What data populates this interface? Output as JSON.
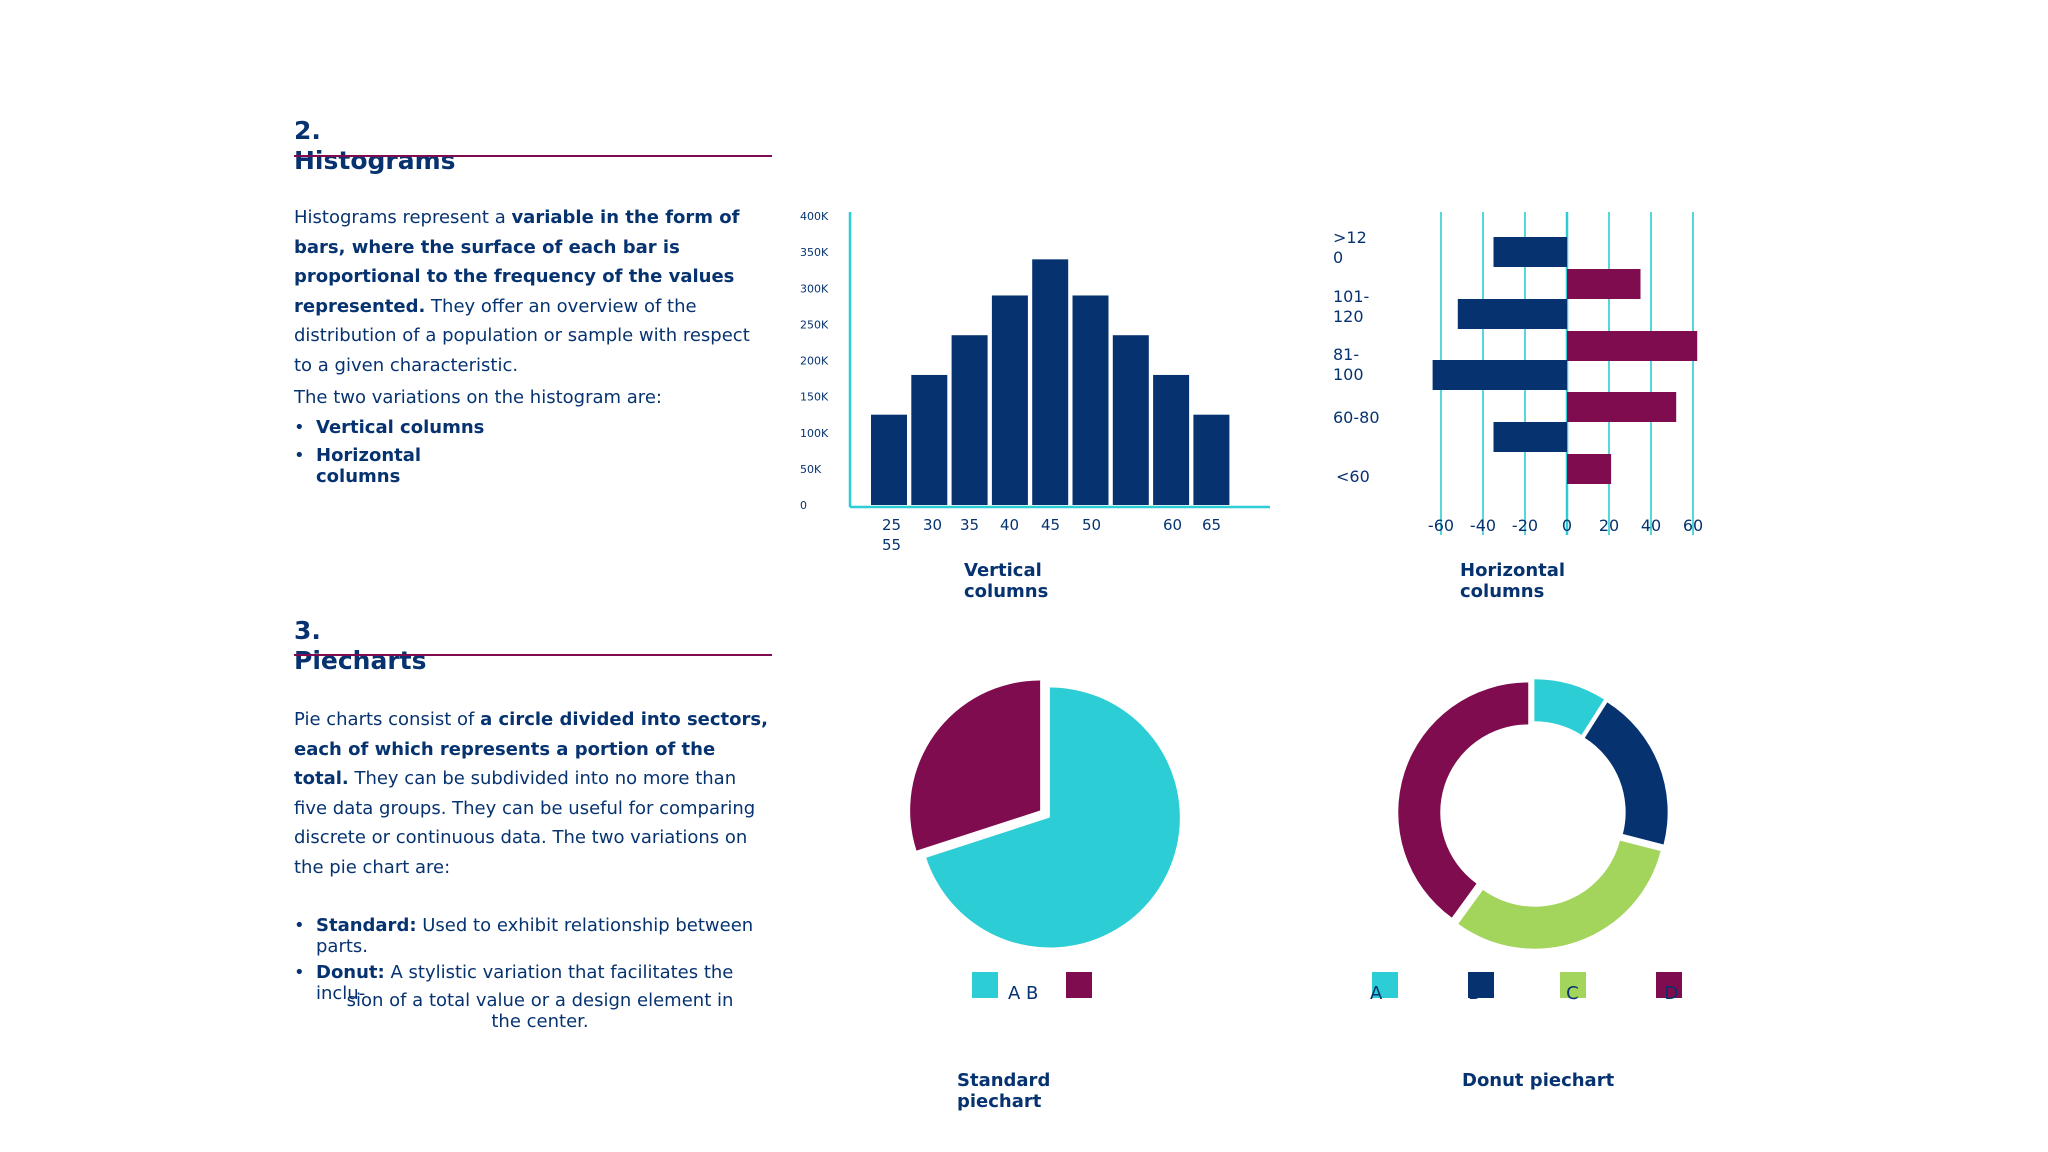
{
  "colors": {
    "navy": "#063370",
    "teal": "#2ccdd4",
    "plum": "#7e0c4e",
    "green": "#a3d45c"
  },
  "histograms": {
    "number": "2.",
    "title": "Histograms",
    "para_1": "Histograms represent a ",
    "para_bold": "variable in the form of bars, where the surface of each bar is proportional to the frequency of the values represented.",
    "para_2": " They offer an overview of the distribution of a population or sample with respect to a given characteristic.",
    "intro": "The two variations on the histogram are:",
    "bullet_1": "Vertical columns",
    "bullet_2": "Horizontal columns",
    "vertical_caption": "Vertical columns",
    "horizontal_caption": "Horizontal columns"
  },
  "piecharts": {
    "number": "3.",
    "title": "Piecharts",
    "para_1": "Pie charts consist of ",
    "para_bold": "a circle divided into sectors, each of which represents a portion of the total.",
    "para_2": " They can be subdivided into no more than five data groups. They can be useful for comparing discrete or continuous data. The two variations on the pie chart are:",
    "bullet_1_bold": "Standard:",
    "bullet_1_text": " Used to exhibit relationship between parts.",
    "bullet_2_bold": "Donut:",
    "bullet_2_text": " A stylistic variation that facilitates the inclu-",
    "bullet_2_cont": "sion of a total value or a design element in the center.",
    "standard_caption": "Standard piechart",
    "donut_caption": "Donut piechart"
  },
  "chart_data": [
    {
      "type": "bar",
      "orientation": "vertical",
      "x_tick_labels": [
        "25",
        "30",
        "35",
        "40",
        "45",
        "50",
        "60",
        "65",
        "55"
      ],
      "values": [
        125000,
        180000,
        235000,
        290000,
        340000,
        290000,
        235000,
        180000,
        125000
      ],
      "y_tick_labels": [
        "0",
        "50K",
        "100K",
        "150K",
        "200K",
        "250K",
        "300K",
        "350K",
        "400K"
      ],
      "ylim": [
        0,
        400000
      ],
      "grid": false
    },
    {
      "type": "bar",
      "orientation": "horizontal",
      "categories": [
        ">12 0",
        "101- 120",
        "81- 100",
        "60-80",
        "<60"
      ],
      "series": [
        {
          "color": "#063370",
          "values": [
            -35,
            -52,
            -64,
            -35,
            0
          ]
        },
        {
          "color": "#7e0c4e",
          "values": [
            35,
            62,
            52,
            21,
            0
          ]
        }
      ],
      "x_tick_labels": [
        "-60",
        "-40",
        "-20",
        "0",
        "20",
        "40",
        "60"
      ],
      "xlim": [
        -70,
        70
      ],
      "grid": true
    },
    {
      "type": "pie",
      "labels": [
        "A",
        "B"
      ],
      "values": [
        70,
        30
      ],
      "colors": [
        "#2ccdd4",
        "#7e0c4e"
      ],
      "legend_text": "A B"
    },
    {
      "type": "pie",
      "variant": "donut",
      "labels": [
        "A",
        "B",
        "C",
        "D"
      ],
      "values": [
        9,
        20,
        31,
        40
      ],
      "colors": [
        "#2ccdd4",
        "#063370",
        "#a3d45c",
        "#7e0c4e"
      ],
      "legend_text": "A B C D"
    }
  ]
}
